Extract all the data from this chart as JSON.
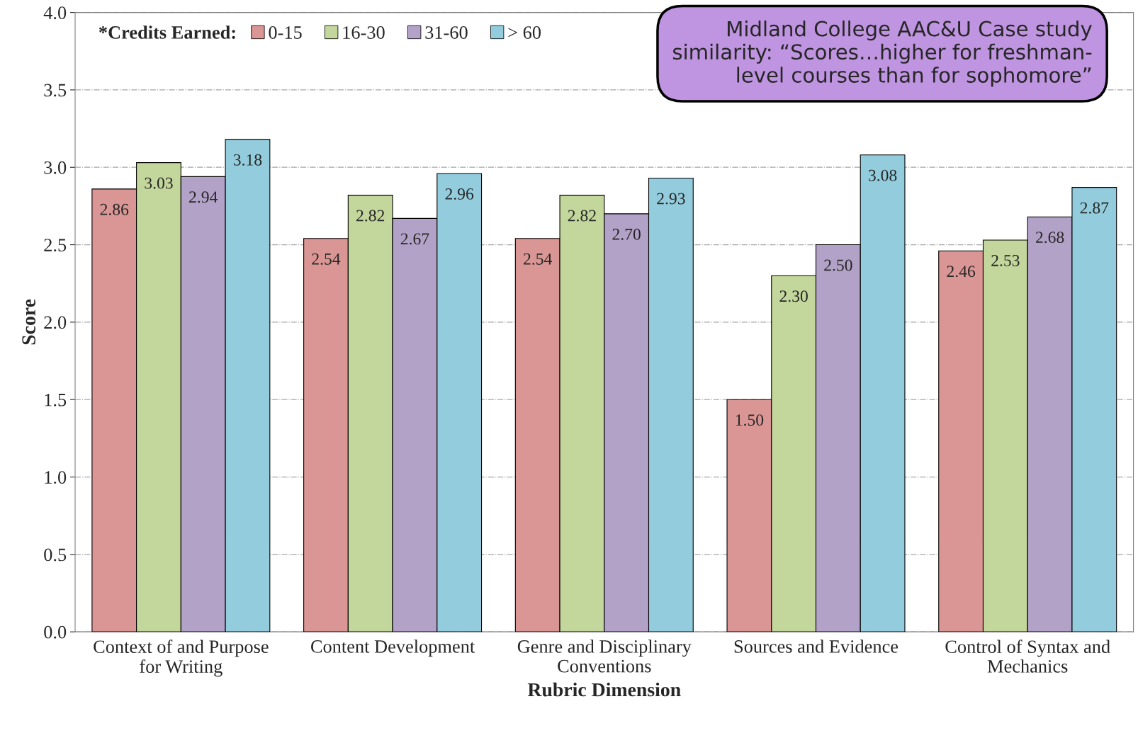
{
  "chart_data": {
    "type": "bar",
    "xlabel": "Rubric Dimension",
    "ylabel": "Score",
    "legend_title": "*Credits Earned:",
    "categories": [
      "Context of and Purpose\nfor Writing",
      "Content Development",
      "Genre and Disciplinary\nConventions",
      "Sources and Evidence",
      "Control of Syntax and\nMechanics"
    ],
    "series": [
      {
        "name": "0-15",
        "color": "#d99694",
        "values": [
          2.86,
          2.54,
          2.54,
          1.5,
          2.46
        ],
        "value_labels": [
          "2.86",
          "2.54",
          "2.54",
          "1.50",
          "2.46"
        ]
      },
      {
        "name": "16-30",
        "color": "#c3d69b",
        "values": [
          3.03,
          2.82,
          2.82,
          2.3,
          2.53
        ],
        "value_labels": [
          "3.03",
          "2.82",
          "2.82",
          "2.30",
          "2.53"
        ]
      },
      {
        "name": "31-60",
        "color": "#b3a2c7",
        "values": [
          2.94,
          2.67,
          2.7,
          2.5,
          2.68
        ],
        "value_labels": [
          "2.94",
          "2.67",
          "2.70",
          "2.50",
          "2.68"
        ]
      },
      {
        "name": "> 60",
        "color": "#93cddd",
        "values": [
          3.18,
          2.96,
          2.93,
          3.08,
          2.87
        ],
        "value_labels": [
          "3.18",
          "2.96",
          "2.93",
          "3.08",
          "2.87"
        ]
      }
    ],
    "ylim": [
      0,
      4
    ],
    "yticks": [
      {
        "value": 0,
        "label": "0.0"
      },
      {
        "value": 0.5,
        "label": "0.5"
      },
      {
        "value": 1,
        "label": "1.0"
      },
      {
        "value": 1.5,
        "label": "1.5"
      },
      {
        "value": 2,
        "label": "2.0"
      },
      {
        "value": 2.5,
        "label": "2.5"
      },
      {
        "value": 3,
        "label": "3.0"
      },
      {
        "value": 3.5,
        "label": "3.5"
      },
      {
        "value": 4,
        "label": "4.0"
      }
    ],
    "grid": "y",
    "legend": "top left",
    "annotations": [
      "Midland College AAC&U Case study\nsimilarity: “Scores…higher for freshman-\nlevel courses than for sophomore”"
    ]
  }
}
